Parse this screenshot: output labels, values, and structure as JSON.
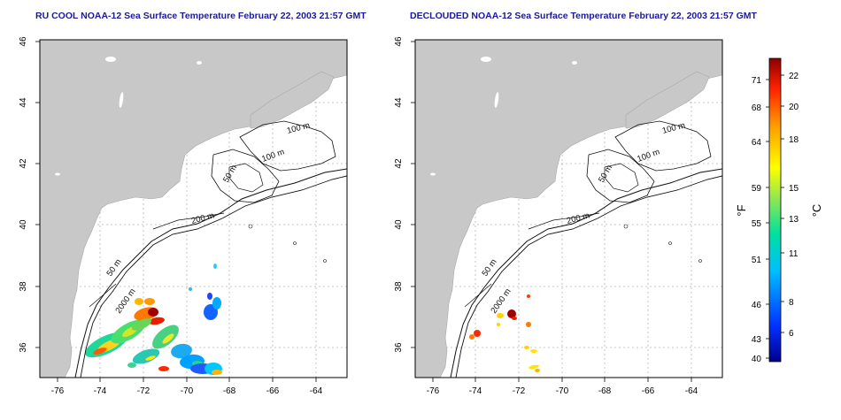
{
  "colors": {
    "title": "#1a1a9a",
    "land": "#c8c8c8",
    "water": "#ffffff",
    "grid": "#b5b5b5",
    "contour": "#111111"
  },
  "maps": [
    {
      "title": "RU COOL NOAA-12 Sea Surface Temperature February 22, 2003 21:57 GMT",
      "x_ticks": [
        "-76",
        "-74",
        "-72",
        "-70",
        "-68",
        "-66",
        "-64"
      ],
      "y_ticks": [
        "46",
        "44",
        "42",
        "40",
        "38",
        "36"
      ],
      "contour_labels": [
        "100 m",
        "100 m",
        "50 m",
        "200 m",
        "50 m",
        "2000 m"
      ]
    },
    {
      "title": "DECLOUDED NOAA-12 Sea Surface Temperature February 22, 2003 21:57 GMT",
      "x_ticks": [
        "-76",
        "-74",
        "-72",
        "-70",
        "-68",
        "-66",
        "-64"
      ],
      "y_ticks": [
        "46",
        "44",
        "42",
        "40",
        "38",
        "36"
      ],
      "contour_labels": [
        "100 m",
        "100 m",
        "50 m",
        "200 m",
        "50 m",
        "2000 m"
      ]
    }
  ],
  "colorbar": {
    "f_unit": "°F",
    "c_unit": "°C",
    "f_ticks": [
      "71",
      "68",
      "64",
      "59",
      "55",
      "51",
      "46",
      "43",
      "40"
    ],
    "c_ticks": [
      "22",
      "20",
      "18",
      "15",
      "13",
      "11",
      "8",
      "6"
    ]
  }
}
